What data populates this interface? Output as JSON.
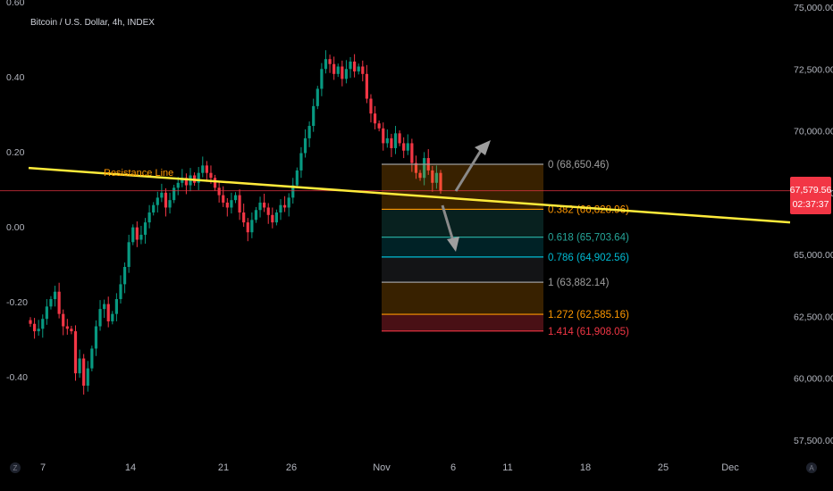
{
  "header": {
    "title": "Bitcoin / U.S. Dollar, 4h, INDEX"
  },
  "chart_data": {
    "type": "candlestick",
    "title": "Bitcoin / U.S. Dollar, 4h, INDEX",
    "right_axis": {
      "ticks": [
        57500,
        60000,
        62500,
        65000,
        67500,
        70000,
        72500,
        75000
      ],
      "tick_labels": [
        "57,500.00",
        "60,000.00",
        "62,500.00",
        "65,000.00",
        "67,500.00",
        "70,000.00",
        "72,500.00",
        "75,000.00"
      ],
      "range": [
        57500,
        75000
      ]
    },
    "left_axis": {
      "ticks": [
        0.6,
        0.4,
        0.2,
        0.0,
        -0.2,
        -0.4
      ],
      "tick_labels": [
        "0.60",
        "0.40",
        "0.20",
        "0.00",
        "-0.20",
        "-0.40"
      ],
      "range": [
        -0.6,
        0.6
      ]
    },
    "x_axis": {
      "labels": [
        "7",
        "14",
        "21",
        "26",
        "Nov",
        "6",
        "11",
        "18",
        "25",
        "Dec"
      ],
      "timezone_label": "Z",
      "auto_label": "A"
    },
    "last_price": {
      "value": 67579.56,
      "label": "67,579.56",
      "countdown": "02:37:37",
      "color": "#f23645"
    },
    "resistance_line": {
      "label": "Resistance Line",
      "color": "#ffeb3b",
      "start_price": 68500,
      "end_price": 66300
    },
    "fibonacci": {
      "levels": [
        {
          "ratio": 0,
          "price": 68650.46,
          "label": "0 (68,650.46)",
          "color": "#9e9e9e"
        },
        {
          "ratio": 0.382,
          "price": 66828.96,
          "label": "0.382 (66,828.96)",
          "color": "#ff9800"
        },
        {
          "ratio": 0.618,
          "price": 65703.64,
          "label": "0.618 (65,703.64)",
          "color": "#26a69a"
        },
        {
          "ratio": 0.786,
          "price": 64902.56,
          "label": "0.786 (64,902.56)",
          "color": "#00bcd4"
        },
        {
          "ratio": 1,
          "price": 63882.14,
          "label": "1 (63,882.14)",
          "color": "#9e9e9e"
        },
        {
          "ratio": 1.272,
          "price": 62585.16,
          "label": "1.272 (62,585.16)",
          "color": "#ff9800"
        },
        {
          "ratio": 1.414,
          "price": 61908.05,
          "label": "1.414 (61,908.05)",
          "color": "#f23645"
        }
      ]
    },
    "series": [
      {
        "values": [
          62200,
          61900,
          62000,
          62400,
          62900,
          63200,
          63500,
          62600,
          62100,
          62000,
          61900,
          60200,
          60800,
          59700,
          60400,
          61200,
          62100,
          62800,
          63000,
          62300,
          62600,
          63200,
          63800,
          64500,
          65500,
          66100,
          65600,
          65800,
          66300,
          66700,
          67000,
          67300,
          67500,
          66900,
          67200,
          67700,
          67900,
          68100,
          67800,
          68200,
          67900,
          68300,
          68600,
          68300,
          68100,
          67700,
          67400,
          67100,
          66900,
          67200,
          67400,
          66700,
          66300,
          65900,
          66400,
          66800,
          67100,
          66900,
          66600,
          66300,
          66700,
          67000,
          66900,
          67300,
          67800,
          68400,
          69100,
          69700,
          70200,
          71000,
          71700,
          72500,
          72900,
          72700,
          72300,
          72600,
          72100,
          72500,
          72800,
          72400,
          72600,
          72300,
          71300,
          70700,
          70300,
          70100,
          69500,
          69700,
          69300,
          69900,
          69500,
          69200,
          69500,
          68700,
          68300,
          68100,
          68900,
          68400,
          67900,
          68300,
          67580
        ]
      }
    ]
  }
}
